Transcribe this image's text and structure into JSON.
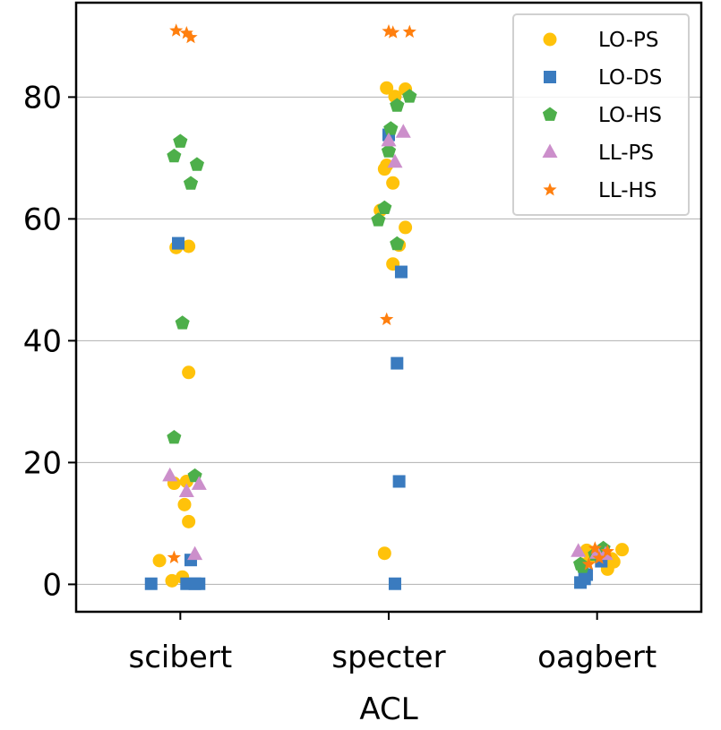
{
  "chart_data": {
    "type": "scatter",
    "title": "",
    "xlabel": "ACL",
    "ylabel": "",
    "categories": [
      "scibert",
      "specter",
      "oagbert"
    ],
    "ylim": [
      -4.5,
      95.5
    ],
    "yticks": [
      0,
      20,
      40,
      60,
      80
    ],
    "grid": "y",
    "legend_position": "top-right",
    "series": [
      {
        "name": "LO-PS",
        "color": "#FFC20A",
        "marker": "circle",
        "points": [
          {
            "x": "scibert",
            "y": 55.3,
            "jitter": -0.02
          },
          {
            "x": "scibert",
            "y": 55.5,
            "jitter": 0.04
          },
          {
            "x": "scibert",
            "y": 34.8,
            "jitter": 0.04
          },
          {
            "x": "scibert",
            "y": 16.9,
            "jitter": 0.03
          },
          {
            "x": "scibert",
            "y": 16.6,
            "jitter": -0.03
          },
          {
            "x": "scibert",
            "y": 13.1,
            "jitter": 0.02
          },
          {
            "x": "scibert",
            "y": 10.3,
            "jitter": 0.04
          },
          {
            "x": "scibert",
            "y": 3.9,
            "jitter": -0.1
          },
          {
            "x": "scibert",
            "y": 1.2,
            "jitter": 0.01
          },
          {
            "x": "scibert",
            "y": 0.6,
            "jitter": -0.04
          },
          {
            "x": "specter",
            "y": 81.5,
            "jitter": -0.01
          },
          {
            "x": "specter",
            "y": 81.3,
            "jitter": 0.08
          },
          {
            "x": "specter",
            "y": 80.1,
            "jitter": 0.03
          },
          {
            "x": "specter",
            "y": 68.8,
            "jitter": -0.01
          },
          {
            "x": "specter",
            "y": 68.2,
            "jitter": -0.02
          },
          {
            "x": "specter",
            "y": 65.9,
            "jitter": 0.02
          },
          {
            "x": "specter",
            "y": 61.4,
            "jitter": -0.04
          },
          {
            "x": "specter",
            "y": 58.6,
            "jitter": 0.08
          },
          {
            "x": "specter",
            "y": 55.7,
            "jitter": 0.05
          },
          {
            "x": "specter",
            "y": 52.6,
            "jitter": 0.02
          },
          {
            "x": "specter",
            "y": 5.1,
            "jitter": -0.02
          },
          {
            "x": "oagbert",
            "y": 5.7,
            "jitter": 0.12
          },
          {
            "x": "oagbert",
            "y": 5.6,
            "jitter": -0.05
          },
          {
            "x": "oagbert",
            "y": 4.8,
            "jitter": 0.03
          },
          {
            "x": "oagbert",
            "y": 4.5,
            "jitter": -0.03
          },
          {
            "x": "oagbert",
            "y": 4.2,
            "jitter": 0.07
          },
          {
            "x": "oagbert",
            "y": 3.7,
            "jitter": 0.08
          },
          {
            "x": "oagbert",
            "y": 3.3,
            "jitter": -0.07
          },
          {
            "x": "oagbert",
            "y": 2.5,
            "jitter": 0.05
          }
        ]
      },
      {
        "name": "LO-DS",
        "color": "#3A7BBF",
        "marker": "square",
        "points": [
          {
            "x": "scibert",
            "y": 56.0,
            "jitter": -0.01
          },
          {
            "x": "scibert",
            "y": 4.0,
            "jitter": 0.05
          },
          {
            "x": "scibert",
            "y": 0.1,
            "jitter": -0.14
          },
          {
            "x": "scibert",
            "y": 0.1,
            "jitter": 0.03
          },
          {
            "x": "scibert",
            "y": 0.1,
            "jitter": 0.07
          },
          {
            "x": "scibert",
            "y": 0.1,
            "jitter": 0.09
          },
          {
            "x": "specter",
            "y": 73.8,
            "jitter": 0.0
          },
          {
            "x": "specter",
            "y": 51.3,
            "jitter": 0.06
          },
          {
            "x": "specter",
            "y": 36.3,
            "jitter": 0.04
          },
          {
            "x": "specter",
            "y": 16.9,
            "jitter": 0.05
          },
          {
            "x": "specter",
            "y": 0.1,
            "jitter": 0.03
          },
          {
            "x": "oagbert",
            "y": 3.8,
            "jitter": 0.02
          },
          {
            "x": "oagbert",
            "y": 1.6,
            "jitter": -0.05
          },
          {
            "x": "oagbert",
            "y": 0.9,
            "jitter": -0.06
          },
          {
            "x": "oagbert",
            "y": 0.3,
            "jitter": -0.08
          }
        ]
      },
      {
        "name": "LO-HS",
        "color": "#4DAF4A",
        "marker": "pentagon",
        "points": [
          {
            "x": "scibert",
            "y": 72.7,
            "jitter": 0.0
          },
          {
            "x": "scibert",
            "y": 70.3,
            "jitter": -0.03
          },
          {
            "x": "scibert",
            "y": 68.9,
            "jitter": 0.08
          },
          {
            "x": "scibert",
            "y": 65.8,
            "jitter": 0.05
          },
          {
            "x": "scibert",
            "y": 42.9,
            "jitter": 0.01
          },
          {
            "x": "scibert",
            "y": 24.1,
            "jitter": -0.03
          },
          {
            "x": "scibert",
            "y": 17.8,
            "jitter": 0.07
          },
          {
            "x": "specter",
            "y": 80.1,
            "jitter": 0.1
          },
          {
            "x": "specter",
            "y": 78.6,
            "jitter": 0.04
          },
          {
            "x": "specter",
            "y": 74.8,
            "jitter": 0.01
          },
          {
            "x": "specter",
            "y": 71.1,
            "jitter": 0.0
          },
          {
            "x": "specter",
            "y": 61.8,
            "jitter": -0.02
          },
          {
            "x": "specter",
            "y": 59.8,
            "jitter": -0.05
          },
          {
            "x": "specter",
            "y": 55.9,
            "jitter": 0.04
          },
          {
            "x": "oagbert",
            "y": 5.9,
            "jitter": 0.03
          },
          {
            "x": "oagbert",
            "y": 4.9,
            "jitter": -0.01
          },
          {
            "x": "oagbert",
            "y": 3.3,
            "jitter": -0.08
          },
          {
            "x": "oagbert",
            "y": 2.9,
            "jitter": -0.07
          }
        ]
      },
      {
        "name": "LL-PS",
        "color": "#CC8FCB",
        "marker": "triangle",
        "points": [
          {
            "x": "scibert",
            "y": 17.8,
            "jitter": -0.05
          },
          {
            "x": "scibert",
            "y": 16.4,
            "jitter": 0.09
          },
          {
            "x": "scibert",
            "y": 15.2,
            "jitter": 0.03
          },
          {
            "x": "scibert",
            "y": 4.9,
            "jitter": 0.07
          },
          {
            "x": "specter",
            "y": 74.2,
            "jitter": 0.07
          },
          {
            "x": "specter",
            "y": 72.8,
            "jitter": 0.0
          },
          {
            "x": "specter",
            "y": 69.3,
            "jitter": 0.03
          },
          {
            "x": "oagbert",
            "y": 5.4,
            "jitter": -0.09
          },
          {
            "x": "oagbert",
            "y": 5.1,
            "jitter": 0.0
          },
          {
            "x": "oagbert",
            "y": 4.9,
            "jitter": 0.04
          }
        ]
      },
      {
        "name": "LL-HS",
        "color": "#FF7F0E",
        "marker": "star",
        "points": [
          {
            "x": "scibert",
            "y": 90.9,
            "jitter": -0.02
          },
          {
            "x": "scibert",
            "y": 90.5,
            "jitter": 0.03
          },
          {
            "x": "scibert",
            "y": 89.8,
            "jitter": 0.05
          },
          {
            "x": "scibert",
            "y": 4.4,
            "jitter": -0.03
          },
          {
            "x": "specter",
            "y": 90.8,
            "jitter": 0.0
          },
          {
            "x": "specter",
            "y": 90.6,
            "jitter": 0.02
          },
          {
            "x": "specter",
            "y": 90.7,
            "jitter": 0.1
          },
          {
            "x": "specter",
            "y": 43.5,
            "jitter": -0.01
          },
          {
            "x": "oagbert",
            "y": 5.9,
            "jitter": -0.01
          },
          {
            "x": "oagbert",
            "y": 5.4,
            "jitter": 0.05
          },
          {
            "x": "oagbert",
            "y": 4.3,
            "jitter": 0.01
          },
          {
            "x": "oagbert",
            "y": 3.3,
            "jitter": -0.04
          }
        ]
      }
    ]
  }
}
